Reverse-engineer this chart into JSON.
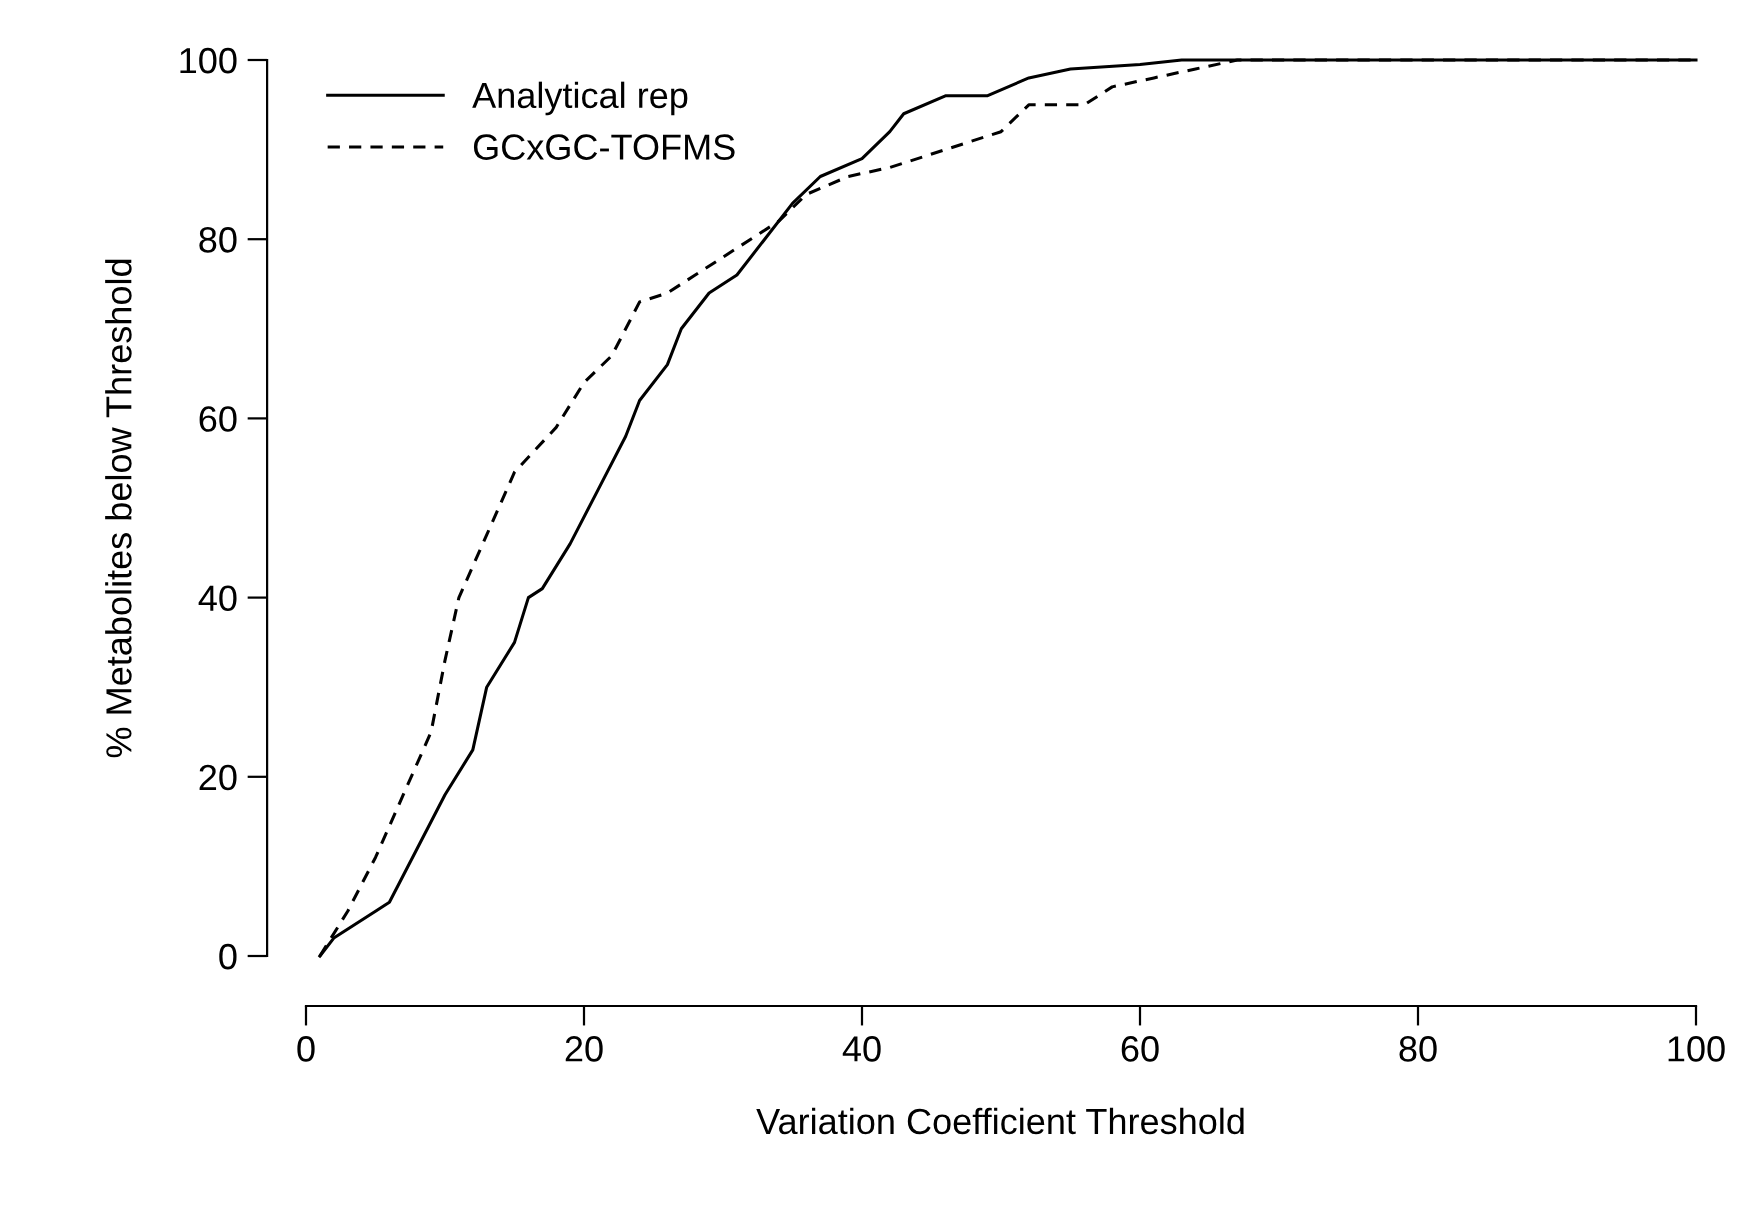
{
  "chart_data": {
    "type": "line",
    "xlabel": "Variation Coefficient Threshold",
    "ylabel": "% Metabolites below Threshold",
    "xlim": [
      0,
      100
    ],
    "ylim": [
      0,
      100
    ],
    "xticks": [
      0,
      20,
      40,
      60,
      80,
      100
    ],
    "yticks": [
      0,
      20,
      40,
      60,
      80,
      100
    ],
    "grid": false,
    "legend": "top left",
    "marker": "none",
    "series": [
      {
        "name": "Analytical rep",
        "color": "#000000",
        "line_style": "solid",
        "x": [
          1,
          2,
          5,
          6,
          8,
          10,
          12,
          13,
          15,
          16,
          17,
          19,
          21,
          23,
          24,
          26,
          27,
          29,
          31,
          33,
          35,
          37,
          40,
          42,
          43,
          46,
          49,
          52,
          55,
          60,
          63,
          67,
          100
        ],
        "values": [
          0,
          2,
          5,
          6,
          12,
          18,
          23,
          30,
          35,
          40,
          41,
          46,
          52,
          58,
          62,
          66,
          70,
          74,
          76,
          80,
          84,
          87,
          89,
          92,
          94,
          96,
          96,
          98,
          99,
          99.5,
          100,
          100,
          100
        ]
      },
      {
        "name": "GCxGC-TOFMS",
        "color": "#000000",
        "line_style": "dashed",
        "x": [
          1,
          3,
          5,
          7,
          9,
          10,
          11,
          13,
          15,
          18,
          20,
          22,
          24,
          26,
          28,
          31,
          34,
          36,
          39,
          42,
          46,
          50,
          52,
          56,
          58,
          61,
          64,
          67,
          100
        ],
        "values": [
          0,
          5,
          11,
          18,
          25,
          33,
          40,
          47,
          54,
          59,
          64,
          67,
          73,
          74,
          76,
          79,
          82,
          85,
          87,
          88,
          90,
          92,
          95,
          95,
          97,
          98,
          99,
          100,
          100
        ]
      }
    ]
  }
}
